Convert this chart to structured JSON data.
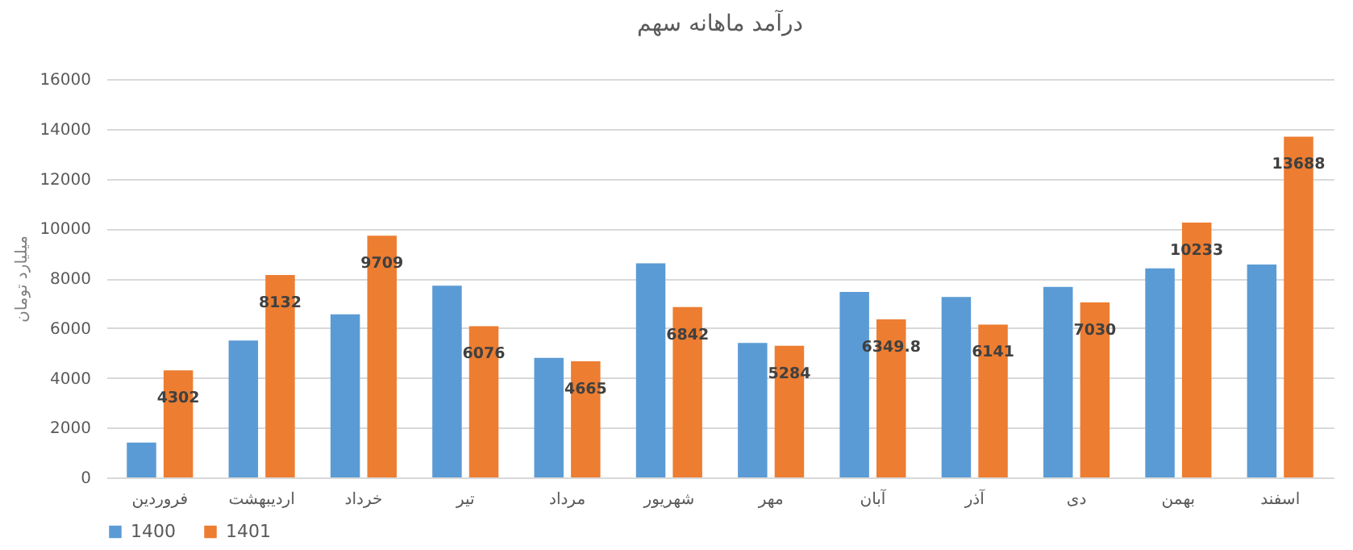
{
  "chart_data": {
    "type": "bar",
    "title": "درآمد ماهانه سهم",
    "ylabel": "میلیارد تومان",
    "categories": [
      "فروردین",
      "اردیبهشت",
      "خرداد",
      "تیر",
      "مرداد",
      "شهریور",
      "مهر",
      "آبان",
      "آذر",
      "دی",
      "بهمن",
      "اسفند"
    ],
    "series": [
      {
        "name": "1400",
        "color": "#5b9bd5",
        "values": [
          1400,
          5500,
          6550,
          7700,
          4800,
          8600,
          5400,
          7450,
          7250,
          7650,
          8400,
          8550
        ]
      },
      {
        "name": "1401",
        "color": "#ed7d31",
        "values": [
          4302,
          8132,
          9709,
          6076,
          4665,
          6842,
          5284,
          6349.8,
          6141,
          7030,
          10233,
          13688
        ],
        "value_labels": [
          "4302",
          "8132",
          "9709",
          "6076",
          "4665",
          "6842",
          "5284",
          "6349.8",
          "6141",
          "7030",
          "10233",
          "13688"
        ]
      }
    ],
    "ylim": [
      0,
      16000
    ],
    "yticks": [
      0,
      2000,
      4000,
      6000,
      8000,
      10000,
      12000,
      14000,
      16000
    ],
    "grid": "y",
    "legend": "bottom"
  }
}
